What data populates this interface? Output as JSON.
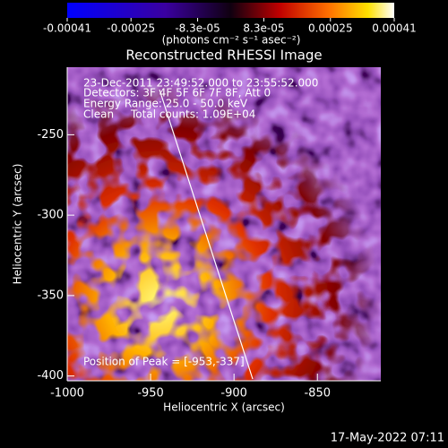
{
  "chart_data": {
    "type": "image",
    "title": "Reconstructed RHESSI Image",
    "colorbar": {
      "lim": [
        -0.00041,
        0.00041
      ],
      "ticks": [
        -0.00041,
        -0.00025,
        {
          "value": -8.3e-05,
          "label": "-8.3e-05"
        },
        {
          "value": 8.3e-05,
          "label": "8.3e-05"
        },
        0.00025,
        0.00041
      ],
      "label": "(photons cm⁻² s⁻¹ asec⁻²)"
    },
    "xlabel": "Heliocentric X (arcsec)",
    "ylabel": "Heliocentric Y (arcsec)",
    "xlim": [
      -1000,
      -812
    ],
    "ylim": [
      -403,
      -208
    ],
    "xticks": [
      -1000,
      -950,
      -900,
      -850
    ],
    "yticks": [
      -400,
      -350,
      -300,
      -250
    ],
    "annotations": [
      "23-Dec-2011 23:49:52.000 to 23:55:52.000",
      "Detectors: 3F 4F 5F 6F 7F 8F, Att 0",
      "Energy Range: 25.0 - 50.0 keV",
      "Clean",
      "Total counts: 1.09E+04",
      "Position of Peak = [-953,-337]"
    ]
  },
  "timestamp": "17-May-2022 07:11"
}
